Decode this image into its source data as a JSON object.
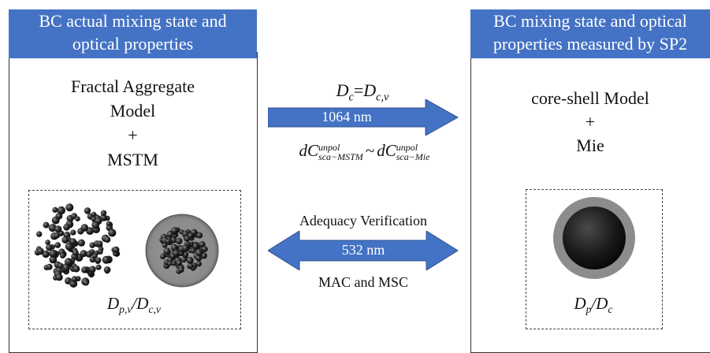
{
  "left_panel": {
    "header_line1": "BC actual mixing state and",
    "header_line2": "optical properties",
    "model_line1": "Fractal Aggregate",
    "model_line2": "Model",
    "plus": "+",
    "method": "MSTM",
    "ratio_main1": "D",
    "ratio_sub1": "p,v",
    "ratio_slash": "/",
    "ratio_main2": "D",
    "ratio_sub2": "c,v"
  },
  "right_panel": {
    "header_line1": "BC mixing state and optical",
    "header_line2": "properties measured by SP2",
    "model": "core-shell Model",
    "plus": "+",
    "method": "Mie",
    "ratio_main1": "D",
    "ratio_sub1": "p",
    "ratio_slash": "/",
    "ratio_main2": "D",
    "ratio_sub2": "c"
  },
  "top_arrow": {
    "eq_main1": "D",
    "eq_sub1": "c",
    "eq_sign": "=",
    "eq_main2": "D",
    "eq_sub2": "c,v",
    "wavelength": "1064 nm",
    "rel_d1": "dC",
    "rel_sup1": "unpol",
    "rel_sub1": "sca−MSTM",
    "rel_sim": "~",
    "rel_d2": "dC",
    "rel_sup2": "unpol",
    "rel_sub2": "sca−Mie"
  },
  "bottom_arrow": {
    "title": "Adequacy Verification",
    "wavelength": "532 nm",
    "metrics": "MAC and MSC"
  },
  "colors": {
    "header_bg": "#4472C4",
    "arrow_fill": "#4472C4",
    "shell_gray": "#8c8c8c",
    "core_black": "#1a1a1a"
  }
}
